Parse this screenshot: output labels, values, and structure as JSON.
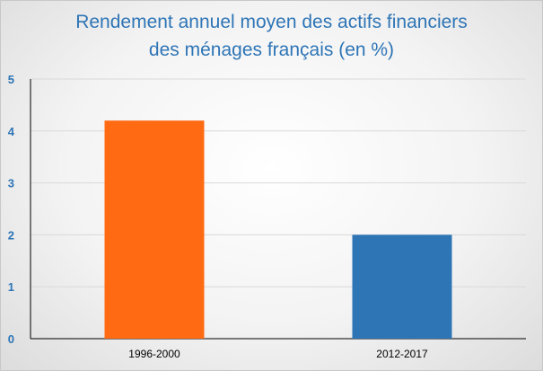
{
  "chart_data": {
    "type": "bar",
    "title_lines": [
      "Rendement annuel moyen des actifs financiers",
      "des ménages français (en %)"
    ],
    "categories": [
      "1996-2000",
      "2012-2017"
    ],
    "values": [
      4.2,
      2.0
    ],
    "bar_colors": [
      "#ff6a13",
      "#2e75b6"
    ],
    "xlabel": "",
    "ylabel": "",
    "ylim": [
      0,
      5
    ],
    "yticks": [
      "0",
      "1",
      "2",
      "3",
      "4",
      "5"
    ],
    "grid": true,
    "legend": "none",
    "title_color": "#2e75b6",
    "tick_color": "#2e75b6"
  }
}
